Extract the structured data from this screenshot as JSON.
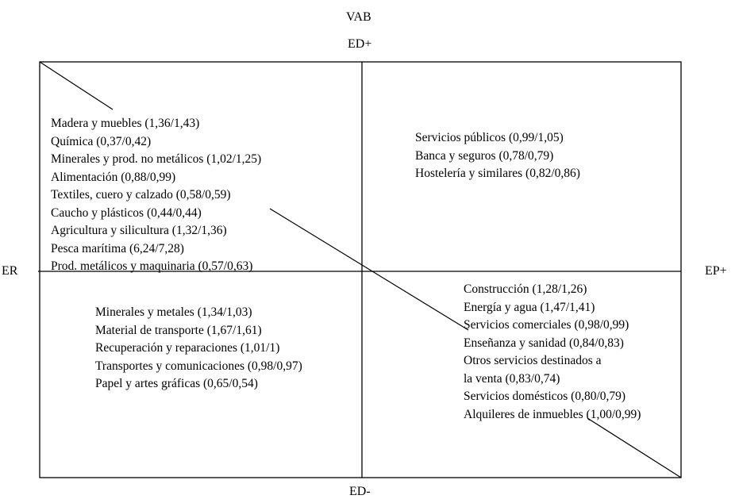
{
  "title": "VAB",
  "axes": {
    "top": "ED+",
    "bottom": "ED-",
    "left": "ER",
    "right": "EP+"
  },
  "quadrants": {
    "top_left": [
      "Madera y muebles (1,36/1,43)",
      "Química (0,37/0,42)",
      "Minerales y prod. no metálicos (1,02/1,25)",
      "Alimentación (0,88/0,99)",
      "Textiles, cuero y calzado (0,58/0,59)",
      "Caucho y plásticos (0,44/0,44)",
      "Agricultura y silicultura (1,32/1,36)",
      "Pesca marítima (6,24/7,28)",
      "Prod. metálicos y maquinaria (0,57/0,63)"
    ],
    "top_right": [
      "Servicios públicos (0,99/1,05)",
      "Banca y seguros (0,78/0,79)",
      "Hostelería y similares (0,82/0,86)"
    ],
    "bottom_left": [
      "Minerales y metales (1,34/1,03)",
      "Material de transporte (1,67/1,61)",
      "Recuperación y reparaciones (1,01/1)",
      "Transportes y comunicaciones (0,98/0,97)",
      "Papel y artes gráficas (0,65/0,54)"
    ],
    "bottom_right": [
      "Construcción (1,28/1,26)",
      "Energía y agua (1,47/1,41)",
      "Servicios comerciales (0,98/0,99)",
      "Enseñanza y sanidad (0,84/0,83)",
      "Otros servicios destinados a",
      "la venta (0,83/0,74)",
      "Servicios domésticos (0,80/0,79)",
      "Alquileres de inmuebles (1,00/0,99)"
    ]
  }
}
